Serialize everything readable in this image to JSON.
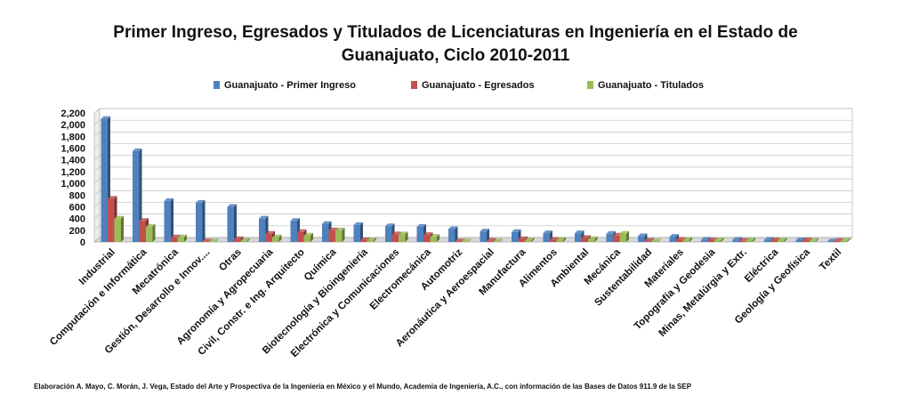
{
  "title_line1": "Primer Ingreso, Egresados y Titulados de Licenciaturas en Ingeniería en el Estado de",
  "title_line2": "Guanajuato, Ciclo 2010-2011",
  "footer": "Elaboración A. Mayo, C. Morán, J. Vega, Estado del Arte y Prospectiva de la Ingeniería en México y el Mundo, Academia de Ingeniería, A.C., con información de las Bases de Datos  911.9  de la SEP",
  "colors": {
    "Primer Ingreso": "#4f81bd",
    "Egresados": "#c0504d",
    "Titulados": "#9bbb59"
  },
  "chart_data": {
    "type": "bar",
    "title": "Primer Ingreso, Egresados y Titulados de Licenciaturas en Ingeniería en el Estado de Guanajuato, Ciclo 2010-2011",
    "xlabel": "",
    "ylabel": "",
    "ylim": [
      0,
      2200
    ],
    "yticks": [
      0,
      200,
      400,
      600,
      800,
      1000,
      1200,
      1400,
      1600,
      1800,
      2000,
      2200
    ],
    "ytick_labels": [
      "0",
      "200",
      "400",
      "600",
      "800",
      "1,000",
      "1,200",
      "1,400",
      "1,600",
      "1,800",
      "2,000",
      "2,200"
    ],
    "grid": true,
    "legend": "top",
    "categories": [
      "Industrial",
      "Computación e Informática",
      "Mecatrónica",
      "Gestión, Desarrollo e Innov....",
      "Otras",
      "Agronomía y Agropecuaria",
      "Civil, Constr. e Ing. Arquitecto",
      "Química",
      "Biotecnología y Bioingeniería",
      "Electrónica y Comunicaciones",
      "Electromecánica",
      "Automotriz",
      "Aeronáutica y Aeroespacial",
      "Manufactura",
      "Alimentos",
      "Ambiental",
      "Mecánica",
      "Sustentabilidad",
      "Materiales",
      "Topografía y Geodesia",
      "Minas, Metalúrgia y Extr.",
      "Eléctrica",
      "Geología y Geofísica",
      "Textil"
    ],
    "series": [
      {
        "name": "Guanajuato - Primer Ingreso",
        "values": [
          2100,
          1550,
          700,
          670,
          600,
          400,
          360,
          310,
          290,
          270,
          260,
          220,
          180,
          170,
          150,
          150,
          140,
          100,
          90,
          40,
          40,
          40,
          30,
          10
        ]
      },
      {
        "name": "Guanajuato - Egresados",
        "values": [
          740,
          360,
          80,
          10,
          50,
          140,
          170,
          200,
          30,
          130,
          120,
          10,
          20,
          50,
          40,
          70,
          110,
          20,
          40,
          30,
          20,
          30,
          30,
          20
        ]
      },
      {
        "name": "Guanajuato - Titulados",
        "values": [
          400,
          260,
          80,
          10,
          20,
          80,
          110,
          200,
          30,
          130,
          90,
          10,
          10,
          30,
          40,
          50,
          140,
          10,
          40,
          30,
          30,
          30,
          20,
          20
        ]
      }
    ]
  }
}
